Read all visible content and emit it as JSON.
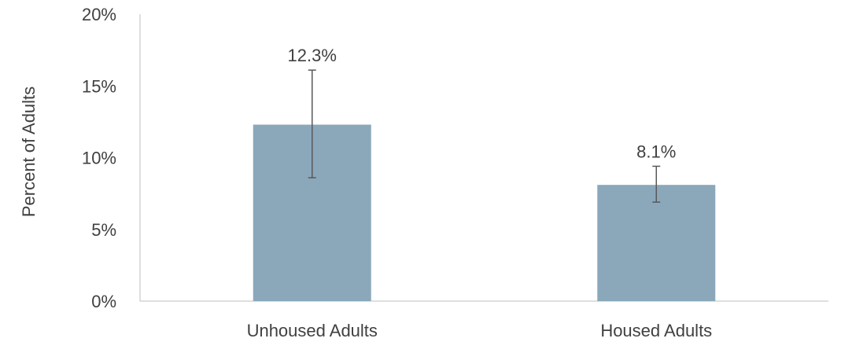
{
  "chart_data": {
    "type": "bar",
    "categories": [
      "Unhoused Adults",
      "Housed Adults"
    ],
    "values": [
      12.3,
      8.1
    ],
    "data_labels": [
      "12.3%",
      "8.1%"
    ],
    "error_bars": [
      {
        "low": 8.6,
        "high": 16.1
      },
      {
        "low": 6.9,
        "high": 9.4
      }
    ],
    "ylabel": "Percent of Adults",
    "xlabel": "",
    "ylim": [
      0,
      20
    ],
    "yticks": [
      0,
      5,
      10,
      15,
      20
    ],
    "ytick_labels": [
      "0%",
      "5%",
      "10%",
      "15%",
      "20%"
    ],
    "grid": false,
    "legend": "none",
    "bar_color": "#8BA8BB",
    "error_bar_color": "#595959",
    "axis_color": "#BFBFBF"
  }
}
